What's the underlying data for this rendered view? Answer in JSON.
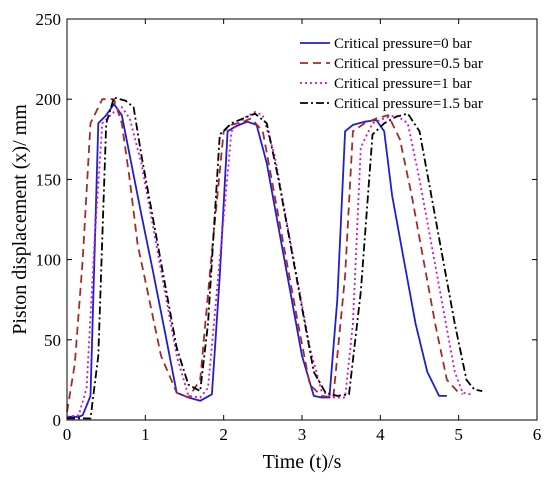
{
  "chart_data": {
    "type": "line",
    "xlabel": "Time (t)/s",
    "ylabel": "Piston displacement (x)/ mm",
    "xlim": [
      0,
      6
    ],
    "ylim": [
      0,
      250
    ],
    "xticks": [
      0,
      1,
      2,
      3,
      4,
      5,
      6
    ],
    "yticks": [
      0,
      50,
      100,
      150,
      200,
      250
    ],
    "grid": false,
    "legend_position": "top-right",
    "series": [
      {
        "name": "Critical pressure=0 bar",
        "color": "#1f1fd0",
        "dash": "solid",
        "x": [
          0.0,
          0.15,
          0.2,
          0.3,
          0.4,
          0.5,
          0.6,
          0.7,
          0.8,
          0.95,
          1.1,
          1.25,
          1.4,
          1.55,
          1.7,
          1.85,
          1.95,
          2.05,
          2.15,
          2.3,
          2.42,
          2.55,
          2.7,
          2.85,
          3.0,
          3.15,
          3.25,
          3.35,
          3.45,
          3.55,
          3.65,
          3.8,
          3.95,
          4.05,
          4.15,
          4.3,
          4.45,
          4.6,
          4.75,
          4.85
        ],
        "y": [
          2,
          2,
          3,
          15,
          185,
          190,
          197,
          190,
          165,
          128,
          92,
          55,
          17,
          14,
          12,
          16,
          90,
          180,
          183,
          186,
          184,
          160,
          120,
          80,
          40,
          15,
          14,
          14,
          75,
          180,
          184,
          186,
          187,
          180,
          140,
          100,
          60,
          30,
          15,
          15
        ]
      },
      {
        "name": "Critical pressure=0.5 bar",
        "color": "#a52a2a",
        "dash": "8,5",
        "x": [
          0.0,
          0.1,
          0.2,
          0.3,
          0.45,
          0.6,
          0.7,
          0.8,
          0.9,
          1.05,
          1.2,
          1.4,
          1.55,
          1.7,
          1.85,
          2.0,
          2.1,
          2.25,
          2.35,
          2.5,
          2.65,
          2.8,
          2.95,
          3.1,
          3.25,
          3.4,
          3.55,
          3.65,
          3.8,
          3.95,
          4.1,
          4.25,
          4.4,
          4.55,
          4.7,
          4.85,
          5.0,
          5.05
        ],
        "y": [
          5,
          35,
          100,
          185,
          200,
          200,
          185,
          150,
          110,
          75,
          40,
          17,
          14,
          25,
          105,
          180,
          184,
          186,
          188,
          180,
          140,
          100,
          60,
          22,
          15,
          14,
          90,
          180,
          185,
          188,
          190,
          175,
          140,
          100,
          60,
          25,
          17,
          16
        ]
      },
      {
        "name": "Critical pressure=1  bar",
        "color": "#d010d0",
        "dash": "2,3",
        "x": [
          0.0,
          0.15,
          0.25,
          0.35,
          0.45,
          0.6,
          0.7,
          0.8,
          0.95,
          1.1,
          1.25,
          1.4,
          1.55,
          1.7,
          1.8,
          1.95,
          2.1,
          2.25,
          2.4,
          2.5,
          2.65,
          2.8,
          2.95,
          3.1,
          3.25,
          3.4,
          3.55,
          3.65,
          3.75,
          3.9,
          4.05,
          4.2,
          4.35,
          4.5,
          4.65,
          4.8,
          4.95,
          5.05,
          5.15
        ],
        "y": [
          2,
          3,
          20,
          110,
          185,
          192,
          195,
          188,
          160,
          120,
          80,
          40,
          15,
          14,
          20,
          100,
          180,
          188,
          192,
          190,
          165,
          125,
          85,
          45,
          18,
          14,
          14,
          60,
          170,
          185,
          188,
          190,
          185,
          150,
          110,
          70,
          30,
          17,
          16
        ]
      },
      {
        "name": "Critical pressure=1.5 bar",
        "color": "#000000",
        "dash": "8,3,2,3",
        "x": [
          0.0,
          0.3,
          0.4,
          0.5,
          0.6,
          0.75,
          0.85,
          0.95,
          1.1,
          1.25,
          1.4,
          1.55,
          1.7,
          1.8,
          1.95,
          2.1,
          2.25,
          2.4,
          2.55,
          2.7,
          2.85,
          3.0,
          3.15,
          3.3,
          3.45,
          3.6,
          3.75,
          3.9,
          4.05,
          4.2,
          4.35,
          4.5,
          4.65,
          4.8,
          4.95,
          5.1,
          5.2,
          5.3
        ],
        "y": [
          1,
          1,
          40,
          185,
          201,
          199,
          195,
          165,
          125,
          85,
          45,
          22,
          18,
          60,
          178,
          185,
          188,
          191,
          185,
          150,
          110,
          70,
          30,
          17,
          15,
          16,
          80,
          178,
          185,
          189,
          191,
          180,
          140,
          100,
          60,
          25,
          19,
          18
        ]
      }
    ]
  }
}
